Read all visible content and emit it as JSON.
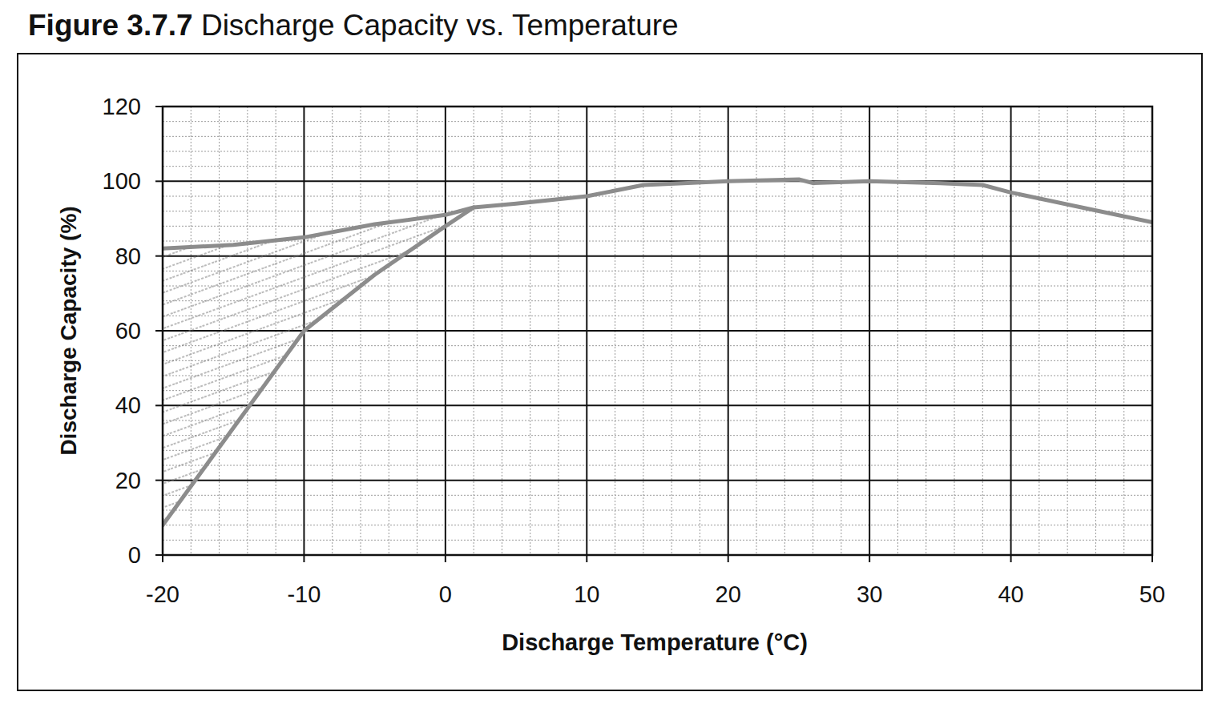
{
  "chart_data": {
    "type": "line",
    "title": "Figure 3.7.7 Discharge Capacity vs. Temperature",
    "x_label": "Discharge Temperature (°C)",
    "y_label": "Discharge Capacity (%)",
    "x": [
      -20,
      -15,
      -10,
      -5,
      0,
      2,
      5,
      10,
      14,
      20,
      25,
      26,
      30,
      35,
      38,
      40,
      45,
      50
    ],
    "series": [
      {
        "color": "#8c8c8c",
        "values": [
          82,
          83,
          85,
          88.5,
          91,
          93,
          94,
          96,
          99,
          100,
          100.5,
          99.5,
          100,
          99.5,
          99,
          97,
          93,
          89
        ]
      },
      {
        "color": "#8c8c8c",
        "values": [
          8,
          34,
          60,
          75,
          88,
          93,
          null,
          null,
          null,
          null,
          null,
          null,
          null,
          null,
          null,
          null,
          null,
          null
        ]
      }
    ],
    "xlim": [
      -20,
      50
    ],
    "ylim": [
      0,
      120
    ],
    "xticks": [
      -20,
      -10,
      0,
      10,
      20,
      30,
      40,
      50
    ],
    "yticks": [
      0,
      20,
      40,
      60,
      80,
      100,
      120
    ],
    "grid": true
  }
}
